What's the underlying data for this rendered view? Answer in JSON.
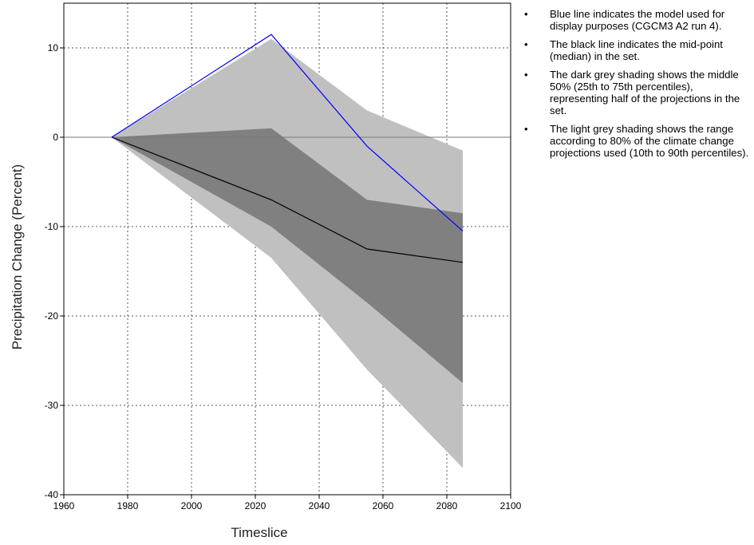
{
  "chart_data": {
    "type": "area",
    "xlabel": "Timeslice",
    "ylabel": "Precipitation Change (Percent)",
    "xlim": [
      1960,
      2100
    ],
    "ylim": [
      -40,
      15
    ],
    "x_ticks": [
      1960,
      1980,
      2000,
      2020,
      2040,
      2060,
      2080,
      2100
    ],
    "y_ticks": [
      10,
      0,
      -10,
      -20,
      -30,
      -40
    ],
    "grid": true,
    "zero_line": true,
    "x": [
      1975,
      2025,
      2055,
      2085
    ],
    "light_band": {
      "upper": [
        0,
        11,
        3,
        -1.5
      ],
      "lower": [
        0,
        -13.5,
        -26,
        -37
      ]
    },
    "dark_band": {
      "upper": [
        0,
        1,
        -7,
        -8.5
      ],
      "lower": [
        0,
        -10,
        -18.5,
        -27.5
      ]
    },
    "series": [
      {
        "values": [
          0,
          11.5,
          -1,
          -10.5
        ],
        "color": "#0000ff"
      },
      {
        "values": [
          0,
          -7,
          -12.5,
          -14
        ],
        "color": "#000000"
      }
    ],
    "colors": {
      "light": "#c0c0c0",
      "dark": "#808080"
    }
  },
  "notes": [
    "Blue line indicates the model used for display purposes (CGCM3 A2 run 4).",
    "The black line indicates the mid-point (median) in the set.",
    "The dark grey shading shows the middle 50% (25th to 75th percentiles), representing half of the projections in the set.",
    "The light grey shading shows the range according to 80% of the climate change projections used (10th to 90th percentiles)."
  ]
}
